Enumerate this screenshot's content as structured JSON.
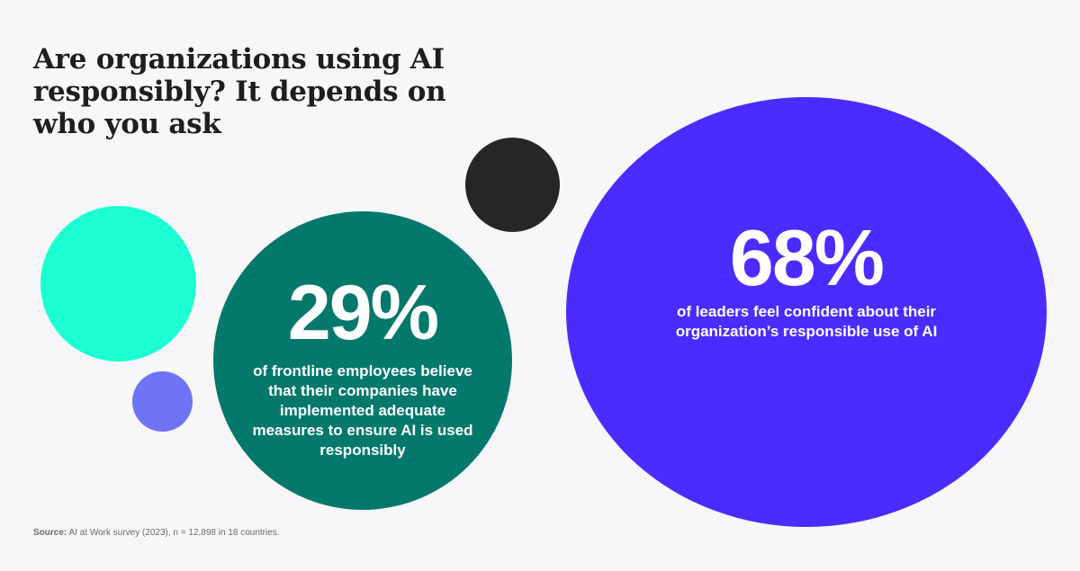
{
  "title": "Are organizations using AI responsibly? It depends on who you ask",
  "stats": [
    {
      "value": "29%",
      "description": "of frontline employees believe that their companies have implemented adequate measures to ensure AI is used responsibly",
      "color": "#05786c"
    },
    {
      "value": "68%",
      "description": "of leaders feel confident about their organization’s responsible use of AI",
      "color": "#4a2cff"
    }
  ],
  "decorative_bubbles": [
    {
      "color": "#1bffd2"
    },
    {
      "color": "#6f73f6"
    },
    {
      "color": "#262628"
    }
  ],
  "source": {
    "label": "Source:",
    "text": "AI at Work survey (2023), n = 12,898 in 18 countries."
  },
  "chart_data": {
    "type": "bubble",
    "title": "Are organizations using AI responsibly? It depends on who you ask",
    "categories": [
      "Frontline employees",
      "Leaders"
    ],
    "values": [
      29,
      68
    ],
    "unit": "%"
  }
}
